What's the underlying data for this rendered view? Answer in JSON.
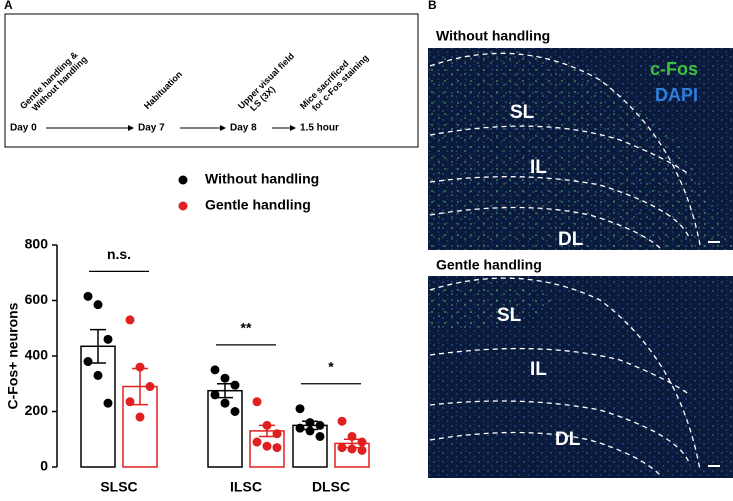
{
  "panels": {
    "a": "A",
    "b": "B"
  },
  "timeline": {
    "days": [
      "Day 0",
      "Day 7",
      "Day 8",
      "1.5 hour"
    ],
    "events": [
      [
        "Gentle handling &",
        "Without handling"
      ],
      [
        "Habituation"
      ],
      [
        "Upper visual field",
        "LS (3X)"
      ],
      [
        "Mice sacrificed",
        "for c-Fos staining"
      ]
    ]
  },
  "chart_data": {
    "type": "bar",
    "y_label": "C-Fos+ neurons",
    "categories": [
      "SLSC",
      "ILSC",
      "DLSC"
    ],
    "ylim": [
      0,
      800
    ],
    "yticks": [
      0,
      200,
      400,
      600,
      800
    ],
    "series": [
      {
        "name": "Without handling",
        "color": "#000000",
        "values": [
          435,
          275,
          150
        ],
        "errors": [
          60,
          25,
          15
        ],
        "points": [
          [
            615,
            585,
            460,
            380,
            330,
            230
          ],
          [
            350,
            320,
            295,
            260,
            230,
            200
          ],
          [
            210,
            160,
            150,
            140,
            130,
            110
          ]
        ]
      },
      {
        "name": "Gentle handling",
        "color": "#e02020",
        "values": [
          290,
          130,
          85
        ],
        "errors": [
          65,
          20,
          15
        ],
        "points": [
          [
            530,
            360,
            290,
            235,
            180
          ],
          [
            235,
            150,
            120,
            90,
            75,
            70
          ],
          [
            165,
            110,
            90,
            70,
            65,
            60
          ]
        ]
      }
    ],
    "annotations": [
      "n.s.",
      "**",
      "*"
    ]
  },
  "images": [
    {
      "title": "Without handling",
      "legend": [
        "c-Fos",
        "DAPI"
      ],
      "layers": [
        "SL",
        "IL",
        "DL"
      ]
    },
    {
      "title": "Gentle handling",
      "layers": [
        "SL",
        "IL",
        "DL"
      ]
    }
  ]
}
